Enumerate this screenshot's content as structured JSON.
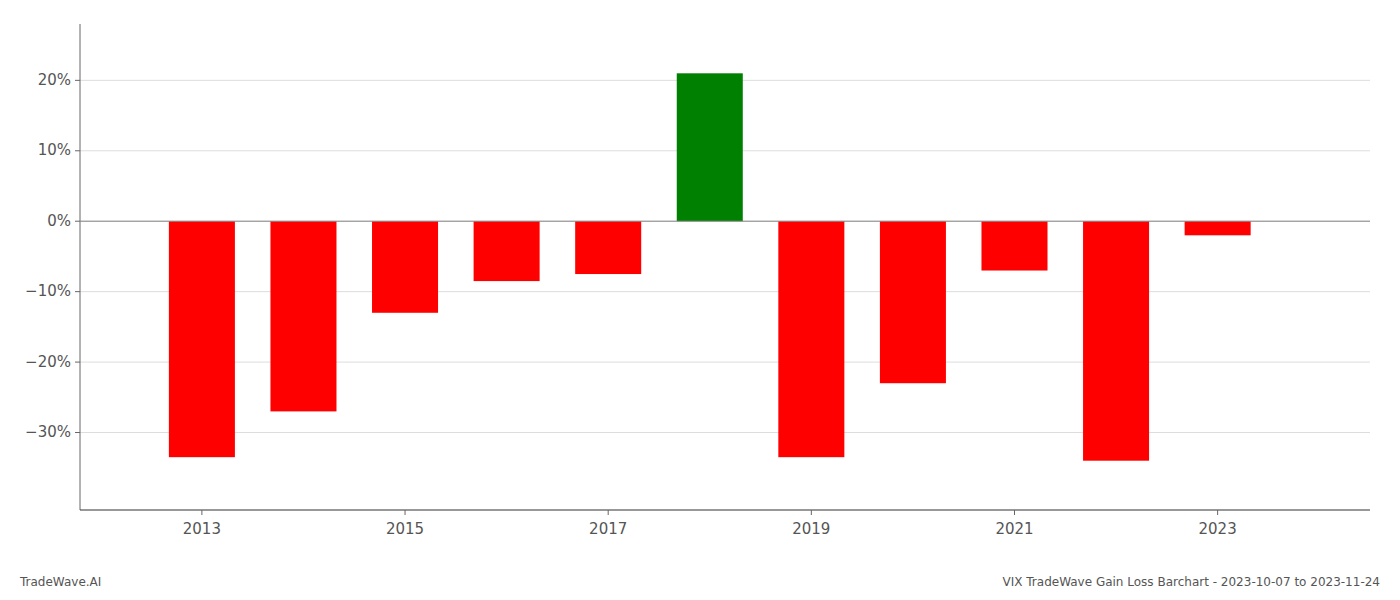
{
  "chart_data": {
    "type": "bar",
    "x": [
      2013,
      2014,
      2015,
      2016,
      2017,
      2018,
      2019,
      2020,
      2021,
      2022,
      2023
    ],
    "values": [
      -33.5,
      -27.0,
      -13.0,
      -8.5,
      -7.5,
      21.0,
      -33.5,
      -23.0,
      -7.0,
      -34.0,
      -2.0
    ],
    "colors": [
      "#ff0000",
      "#ff0000",
      "#ff0000",
      "#ff0000",
      "#ff0000",
      "#008000",
      "#ff0000",
      "#ff0000",
      "#ff0000",
      "#ff0000",
      "#ff0000"
    ],
    "xlim": [
      2011.8,
      2024.5
    ],
    "xticks": [
      2013,
      2015,
      2017,
      2019,
      2021,
      2023
    ],
    "ylim": [
      -41,
      28
    ],
    "yticks": [
      {
        "value": 20,
        "label": "20%"
      },
      {
        "value": 10,
        "label": "10%"
      },
      {
        "value": 0,
        "label": "0%"
      },
      {
        "value": -10,
        "label": "−10%"
      },
      {
        "value": -20,
        "label": "−20%"
      },
      {
        "value": -30,
        "label": "−30%"
      }
    ],
    "grid": true,
    "annotations": [
      "TradeWave.AI",
      "VIX TradeWave Gain Loss Barchart - 2023-10-07 to 2023-11-24"
    ]
  }
}
